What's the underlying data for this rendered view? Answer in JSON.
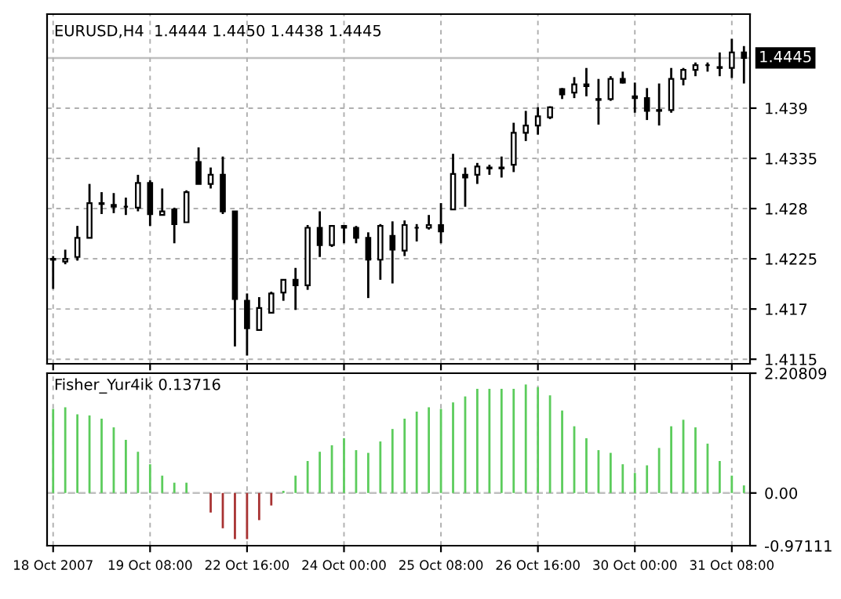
{
  "chart_data": [
    {
      "type": "candlestick",
      "title": "EURUSD,H4  1.4444 1.4450 1.4438 1.4445",
      "color": "#000000",
      "ohlc": [
        [
          1.4225,
          1.4228,
          1.4192,
          1.4224
        ],
        [
          1.4222,
          1.4235,
          1.4219,
          1.4225
        ],
        [
          1.4227,
          1.4261,
          1.4223,
          1.4248
        ],
        [
          1.4248,
          1.4307,
          1.4248,
          1.4286
        ],
        [
          1.4286,
          1.4298,
          1.4274,
          1.4285
        ],
        [
          1.4284,
          1.4297,
          1.4275,
          1.4282
        ],
        [
          1.4282,
          1.4292,
          1.4273,
          1.4282
        ],
        [
          1.4281,
          1.4317,
          1.4277,
          1.4308
        ],
        [
          1.4308,
          1.4311,
          1.4261,
          1.4274
        ],
        [
          1.4273,
          1.4302,
          1.4273,
          1.4277
        ],
        [
          1.4279,
          1.4281,
          1.4242,
          1.4263
        ],
        [
          1.4265,
          1.43,
          1.4265,
          1.4298
        ],
        [
          1.4331,
          1.4347,
          1.4307,
          1.4307
        ],
        [
          1.4307,
          1.4325,
          1.4302,
          1.4317
        ],
        [
          1.4317,
          1.4337,
          1.4274,
          1.4277
        ],
        [
          1.4277,
          1.4277,
          1.4129,
          1.4181
        ],
        [
          1.4179,
          1.4187,
          1.4119,
          1.4149
        ],
        [
          1.4147,
          1.4183,
          1.4147,
          1.4171
        ],
        [
          1.4166,
          1.4189,
          1.4166,
          1.4187
        ],
        [
          1.4188,
          1.4202,
          1.4179,
          1.4202
        ],
        [
          1.4202,
          1.4215,
          1.4169,
          1.4196
        ],
        [
          1.4196,
          1.4262,
          1.4191,
          1.4259
        ],
        [
          1.4259,
          1.4277,
          1.4227,
          1.424
        ],
        [
          1.424,
          1.4262,
          1.4238,
          1.4261
        ],
        [
          1.4261,
          1.4262,
          1.4242,
          1.4259
        ],
        [
          1.4259,
          1.4261,
          1.4242,
          1.4248
        ],
        [
          1.4248,
          1.4254,
          1.4182,
          1.4224
        ],
        [
          1.4224,
          1.4263,
          1.4202,
          1.4261
        ],
        [
          1.425,
          1.4266,
          1.4198,
          1.4235
        ],
        [
          1.4234,
          1.4267,
          1.4228,
          1.4262
        ],
        [
          1.4259,
          1.4263,
          1.4244,
          1.4259
        ],
        [
          1.4259,
          1.4273,
          1.4257,
          1.4262
        ],
        [
          1.4262,
          1.4286,
          1.4242,
          1.4255
        ],
        [
          1.4279,
          1.434,
          1.4279,
          1.4318
        ],
        [
          1.4317,
          1.4325,
          1.4282,
          1.4314
        ],
        [
          1.4317,
          1.433,
          1.4307,
          1.4326
        ],
        [
          1.4325,
          1.4328,
          1.4317,
          1.4324
        ],
        [
          1.4324,
          1.4337,
          1.4314,
          1.4325
        ],
        [
          1.4328,
          1.4374,
          1.432,
          1.4363
        ],
        [
          1.4363,
          1.4387,
          1.4354,
          1.4371
        ],
        [
          1.4371,
          1.4391,
          1.4361,
          1.4381
        ],
        [
          1.438,
          1.4392,
          1.4378,
          1.4391
        ],
        [
          1.4411,
          1.4412,
          1.44,
          1.4405
        ],
        [
          1.4407,
          1.4424,
          1.4401,
          1.4416
        ],
        [
          1.4416,
          1.4434,
          1.4403,
          1.4414
        ],
        [
          1.4399,
          1.4422,
          1.4372,
          1.44
        ],
        [
          1.44,
          1.4425,
          1.4398,
          1.4422
        ],
        [
          1.4422,
          1.443,
          1.4417,
          1.4418
        ],
        [
          1.4403,
          1.4418,
          1.4385,
          1.4401
        ],
        [
          1.4401,
          1.4412,
          1.4377,
          1.4387
        ],
        [
          1.4387,
          1.4417,
          1.4371,
          1.4388
        ],
        [
          1.4388,
          1.4434,
          1.4385,
          1.4422
        ],
        [
          1.4422,
          1.4434,
          1.4415,
          1.4432
        ],
        [
          1.4432,
          1.444,
          1.4425,
          1.4437
        ],
        [
          1.4437,
          1.444,
          1.443,
          1.4437
        ],
        [
          1.4435,
          1.4451,
          1.4425,
          1.4434
        ],
        [
          1.4434,
          1.4466,
          1.4423,
          1.4451
        ],
        [
          1.4451,
          1.4458,
          1.4417,
          1.4445
        ]
      ],
      "ylim": [
        1.411,
        1.4493
      ],
      "yticks": [
        1.4115,
        1.417,
        1.4225,
        1.428,
        1.4335,
        1.439
      ],
      "ref_lines": [
        {
          "axis": "y",
          "value": 1.4445,
          "label": "1.4445",
          "color": "#c0c0c0",
          "line_style": "solid"
        }
      ],
      "grid": true,
      "tick_labels": "y"
    },
    {
      "type": "bar",
      "title": "Fisher_Yur4ik 0.13716",
      "categories": [
        "18 Oct 2007",
        null,
        null,
        null,
        null,
        null,
        null,
        null,
        "19 Oct 08:00",
        null,
        null,
        null,
        null,
        null,
        null,
        null,
        "22 Oct 16:00",
        null,
        null,
        null,
        null,
        null,
        null,
        null,
        "24 Oct 00:00",
        null,
        null,
        null,
        null,
        null,
        null,
        null,
        "25 Oct 08:00",
        null,
        null,
        null,
        null,
        null,
        null,
        null,
        "26 Oct 16:00",
        null,
        null,
        null,
        null,
        null,
        null,
        null,
        "30 Oct 00:00",
        null,
        null,
        null,
        null,
        null,
        null,
        null,
        "31 Oct 08:00",
        null
      ],
      "values": [
        1.55,
        1.58,
        1.45,
        1.43,
        1.37,
        1.21,
        0.98,
        0.76,
        0.53,
        0.32,
        0.19,
        0.19,
        null,
        -0.36,
        -0.65,
        -0.85,
        -0.85,
        -0.5,
        -0.23,
        0.04,
        0.32,
        0.59,
        0.76,
        0.88,
        1.01,
        0.79,
        0.74,
        0.95,
        1.18,
        1.37,
        1.5,
        1.58,
        1.55,
        1.67,
        1.78,
        1.92,
        1.92,
        1.92,
        1.92,
        2.0,
        1.95,
        1.8,
        1.52,
        1.23,
        1.01,
        0.79,
        0.74,
        0.53,
        0.37,
        0.51,
        0.83,
        1.23,
        1.35,
        1.21,
        0.91,
        0.59,
        0.32,
        0.14
      ],
      "colors": [
        "#5ccc5c",
        "#5ccc5c",
        "#5ccc5c",
        "#5ccc5c",
        "#5ccc5c",
        "#5ccc5c",
        "#5ccc5c",
        "#5ccc5c",
        "#5ccc5c",
        "#5ccc5c",
        "#5ccc5c",
        "#5ccc5c",
        "#5ccc5c",
        "#a83232",
        "#a83232",
        "#a83232",
        "#a83232",
        "#a83232",
        "#a83232",
        "#5ccc5c",
        "#5ccc5c",
        "#5ccc5c",
        "#5ccc5c",
        "#5ccc5c",
        "#5ccc5c",
        "#5ccc5c",
        "#5ccc5c",
        "#5ccc5c",
        "#5ccc5c",
        "#5ccc5c",
        "#5ccc5c",
        "#5ccc5c",
        "#5ccc5c",
        "#5ccc5c",
        "#5ccc5c",
        "#5ccc5c",
        "#5ccc5c",
        "#5ccc5c",
        "#5ccc5c",
        "#5ccc5c",
        "#5ccc5c",
        "#5ccc5c",
        "#5ccc5c",
        "#5ccc5c",
        "#5ccc5c",
        "#5ccc5c",
        "#5ccc5c",
        "#5ccc5c",
        "#5ccc5c",
        "#5ccc5c",
        "#5ccc5c",
        "#5ccc5c",
        "#5ccc5c",
        "#5ccc5c",
        "#5ccc5c",
        "#5ccc5c",
        "#5ccc5c",
        "#5ccc5c"
      ],
      "ylim": [
        -0.97111,
        2.20809
      ],
      "yticks": [
        2.20809,
        {
          "value": 0,
          "label": "0.00"
        },
        -0.97111
      ],
      "ref_lines": [
        {
          "axis": "y",
          "value": 0,
          "color": "#c0c0c0",
          "line_style": "dashed"
        }
      ],
      "grid": "x"
    }
  ]
}
